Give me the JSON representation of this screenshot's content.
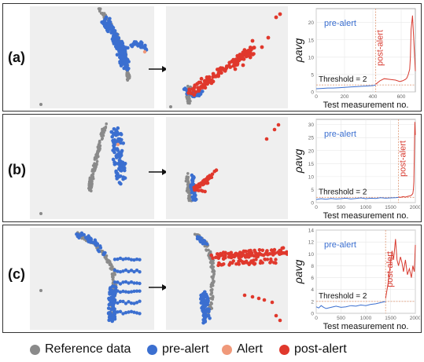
{
  "colors": {
    "reference": "#8a8a8a",
    "pre_alert": "#3b6fd0",
    "alert": "#f0997a",
    "post_alert": "#e0382c",
    "curve_pre": "#3b6fd0",
    "curve_post": "#d83a2f",
    "threshold_line": "#e0a080",
    "panel_bg": "#efefef"
  },
  "rows": [
    {
      "label": "(a)"
    },
    {
      "label": "(b)"
    },
    {
      "label": "(c)"
    }
  ],
  "legend": [
    {
      "label": "Reference data",
      "color": "#8a8a8a"
    },
    {
      "label": "pre-alert",
      "color": "#3b6fd0"
    },
    {
      "label": "Alert",
      "color": "#f0997a"
    },
    {
      "label": "post-alert",
      "color": "#e0382c"
    }
  ],
  "chart_data": [
    {
      "type": "line",
      "xlabel": "Test measurement no.",
      "ylabel": "ρavg",
      "xlim": [
        0,
        700
      ],
      "ylim": [
        0,
        24
      ],
      "xticks": [
        0,
        200,
        400,
        600
      ],
      "yticks": [
        0,
        5,
        10,
        15,
        20
      ],
      "alert_x": 420,
      "threshold": 2,
      "threshold_label": "Threshold = 2",
      "pre_label": "pre-alert",
      "post_label": "post-alert",
      "series": [
        {
          "values_x": [
            0,
            40,
            80,
            120,
            160,
            200,
            240,
            280,
            320,
            360,
            400,
            420
          ],
          "values_y": [
            0.9,
            1.0,
            1.1,
            1.1,
            1.2,
            1.3,
            1.4,
            1.5,
            1.6,
            1.7,
            1.8,
            2.0
          ]
        },
        {
          "values_x": [
            420,
            450,
            480,
            520,
            560,
            590,
            610,
            630,
            640,
            650,
            660,
            665,
            670,
            680,
            690,
            700
          ],
          "values_y": [
            2.2,
            3.2,
            3.8,
            3.6,
            3.4,
            3.0,
            3.2,
            3.6,
            4.0,
            5.0,
            6.5,
            10,
            18,
            22,
            14,
            6
          ]
        }
      ]
    },
    {
      "type": "line",
      "xlabel": "Test measurement no.",
      "ylabel": "ρavg",
      "xlim": [
        0,
        2000
      ],
      "ylim": [
        0,
        32
      ],
      "xticks": [
        0,
        500,
        1000,
        1500,
        2000
      ],
      "yticks": [
        0,
        5,
        10,
        15,
        20,
        25,
        30
      ],
      "alert_x": 1660,
      "threshold": 2,
      "threshold_label": "Threshold = 2",
      "pre_label": "pre-alert",
      "post_label": "post-alert",
      "series": [
        {
          "values_x": [
            0,
            100,
            200,
            300,
            400,
            500,
            600,
            700,
            800,
            900,
            1000,
            1100,
            1200,
            1300,
            1400,
            1500,
            1600,
            1660
          ],
          "values_y": [
            1.2,
            1.5,
            1.3,
            1.6,
            1.4,
            1.5,
            1.7,
            1.4,
            1.6,
            1.8,
            1.5,
            1.7,
            1.6,
            1.9,
            1.7,
            1.8,
            1.9,
            2.0
          ]
        },
        {
          "values_x": [
            1660,
            1700,
            1750,
            1800,
            1850,
            1900,
            1930,
            1950,
            1960,
            1970,
            1980,
            1990,
            2000
          ],
          "values_y": [
            2.2,
            2.0,
            2.3,
            2.1,
            2.4,
            2.6,
            3.0,
            3.5,
            5,
            8,
            18,
            31,
            26
          ]
        }
      ]
    },
    {
      "type": "line",
      "xlabel": "Test measurement no.",
      "ylabel": "ρavg",
      "xlim": [
        0,
        2000
      ],
      "ylim": [
        0,
        14
      ],
      "xticks": [
        0,
        500,
        1000,
        1500,
        2000
      ],
      "yticks": [
        0,
        2,
        4,
        6,
        8,
        10,
        12,
        14
      ],
      "alert_x": 1400,
      "threshold": 2,
      "threshold_label": "Threshold = 2",
      "pre_label": "pre-alert",
      "post_label": "post-alert",
      "series": [
        {
          "values_x": [
            0,
            50,
            100,
            150,
            200,
            300,
            400,
            500,
            600,
            700,
            800,
            900,
            1000,
            1100,
            1200,
            1300,
            1400
          ],
          "values_y": [
            1.1,
            0.9,
            1.3,
            1.0,
            0.8,
            1.0,
            1.2,
            1.0,
            1.1,
            1.3,
            1.2,
            1.4,
            1.3,
            1.5,
            1.6,
            1.8,
            2.0
          ]
        },
        {
          "values_x": [
            1400,
            1450,
            1500,
            1530,
            1560,
            1600,
            1630,
            1660,
            1700,
            1730,
            1760,
            1800,
            1840,
            1880,
            1920,
            1950,
            1980,
            2000
          ],
          "values_y": [
            2.5,
            5.0,
            8.5,
            10.5,
            9.0,
            12.5,
            9.0,
            8.0,
            9.5,
            8.5,
            7.0,
            9.0,
            6.5,
            7.5,
            6.0,
            8.0,
            7.0,
            11.5
          ]
        }
      ]
    }
  ]
}
